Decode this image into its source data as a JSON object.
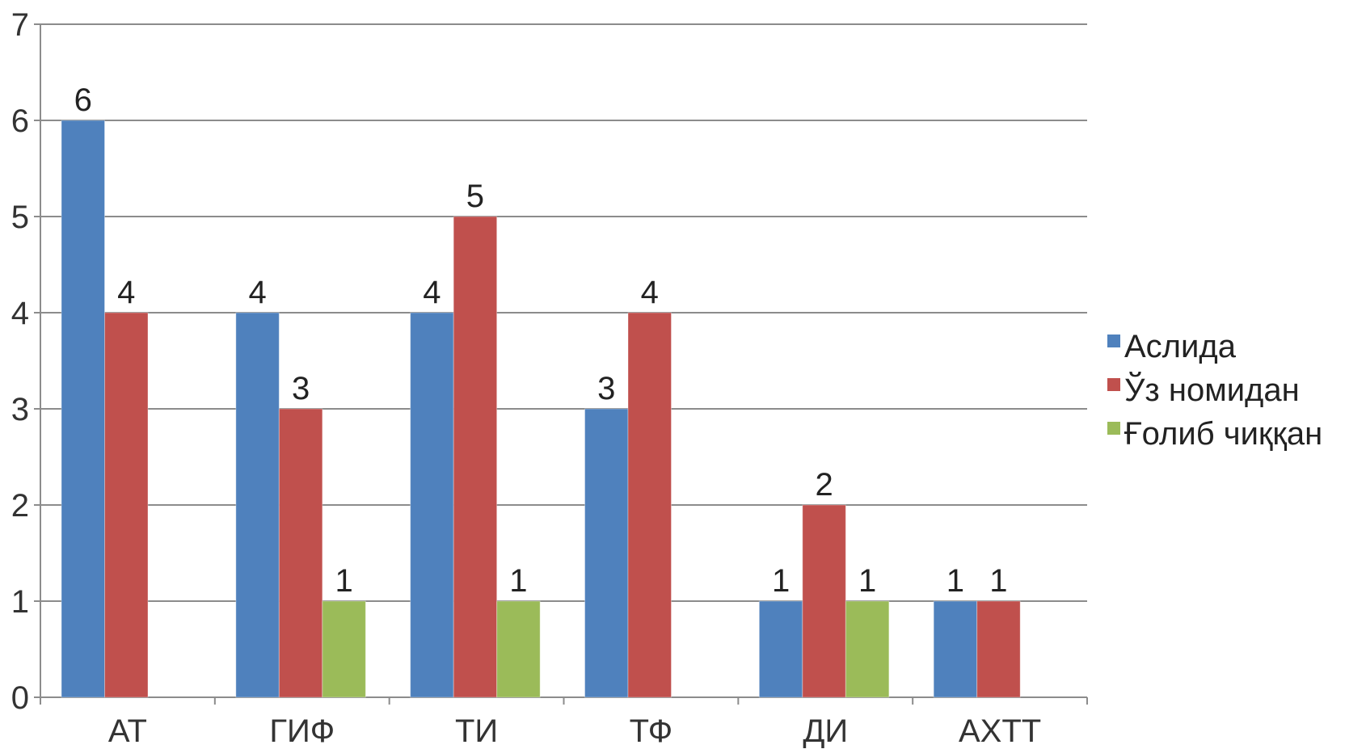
{
  "chart_data": {
    "type": "bar",
    "categories": [
      "АТ",
      "ГИФ",
      "ТИ",
      "ТФ",
      "ДИ",
      "АХТТ"
    ],
    "series": [
      {
        "name": "Аслида",
        "color": "#4F81BD",
        "values": [
          6,
          4,
          4,
          3,
          1,
          1
        ]
      },
      {
        "name": "Ўз номидан",
        "color": "#C0504D",
        "values": [
          4,
          3,
          5,
          4,
          2,
          1
        ]
      },
      {
        "name": "Ғолиб чиққан",
        "color": "#9BBB59",
        "values": [
          null,
          1,
          1,
          null,
          1,
          null
        ]
      }
    ],
    "yticks": [
      "0",
      "1",
      "2",
      "3",
      "4",
      "5",
      "6",
      "7"
    ],
    "ylim": [
      0,
      7
    ],
    "grid": true,
    "data_labels": true,
    "legend_position": "right"
  }
}
